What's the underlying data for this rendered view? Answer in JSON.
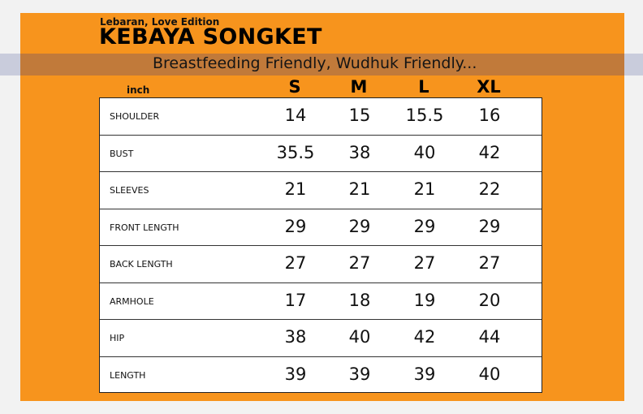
{
  "header": {
    "edition": "Lebaran, Love Edition",
    "title": "KEBAYA SONGKET",
    "subtitle": "Breastfeeding Friendly, Wudhuk Friendly..."
  },
  "table": {
    "unit": "inch",
    "sizes": [
      "S",
      "M",
      "L",
      "XL"
    ],
    "rows": [
      {
        "label": "SHOULDER",
        "values": [
          "14",
          "15",
          "15.5",
          "16"
        ]
      },
      {
        "label": "BUST",
        "values": [
          "35.5",
          "38",
          "40",
          "42"
        ]
      },
      {
        "label": "SLEEVES",
        "values": [
          "21",
          "21",
          "21",
          "22"
        ]
      },
      {
        "label": "FRONT LENGTH",
        "values": [
          "29",
          "29",
          "29",
          "29"
        ]
      },
      {
        "label": "BACK LENGTH",
        "values": [
          "27",
          "27",
          "27",
          "27"
        ]
      },
      {
        "label": "ARMHOLE",
        "values": [
          "17",
          "18",
          "19",
          "20"
        ]
      },
      {
        "label": "HIP",
        "values": [
          "38",
          "40",
          "42",
          "44"
        ]
      },
      {
        "label": "LENGTH",
        "values": [
          "39",
          "39",
          "39",
          "40"
        ]
      }
    ]
  },
  "colors": {
    "panel": "#f7941d",
    "band": "#c17a3a"
  }
}
